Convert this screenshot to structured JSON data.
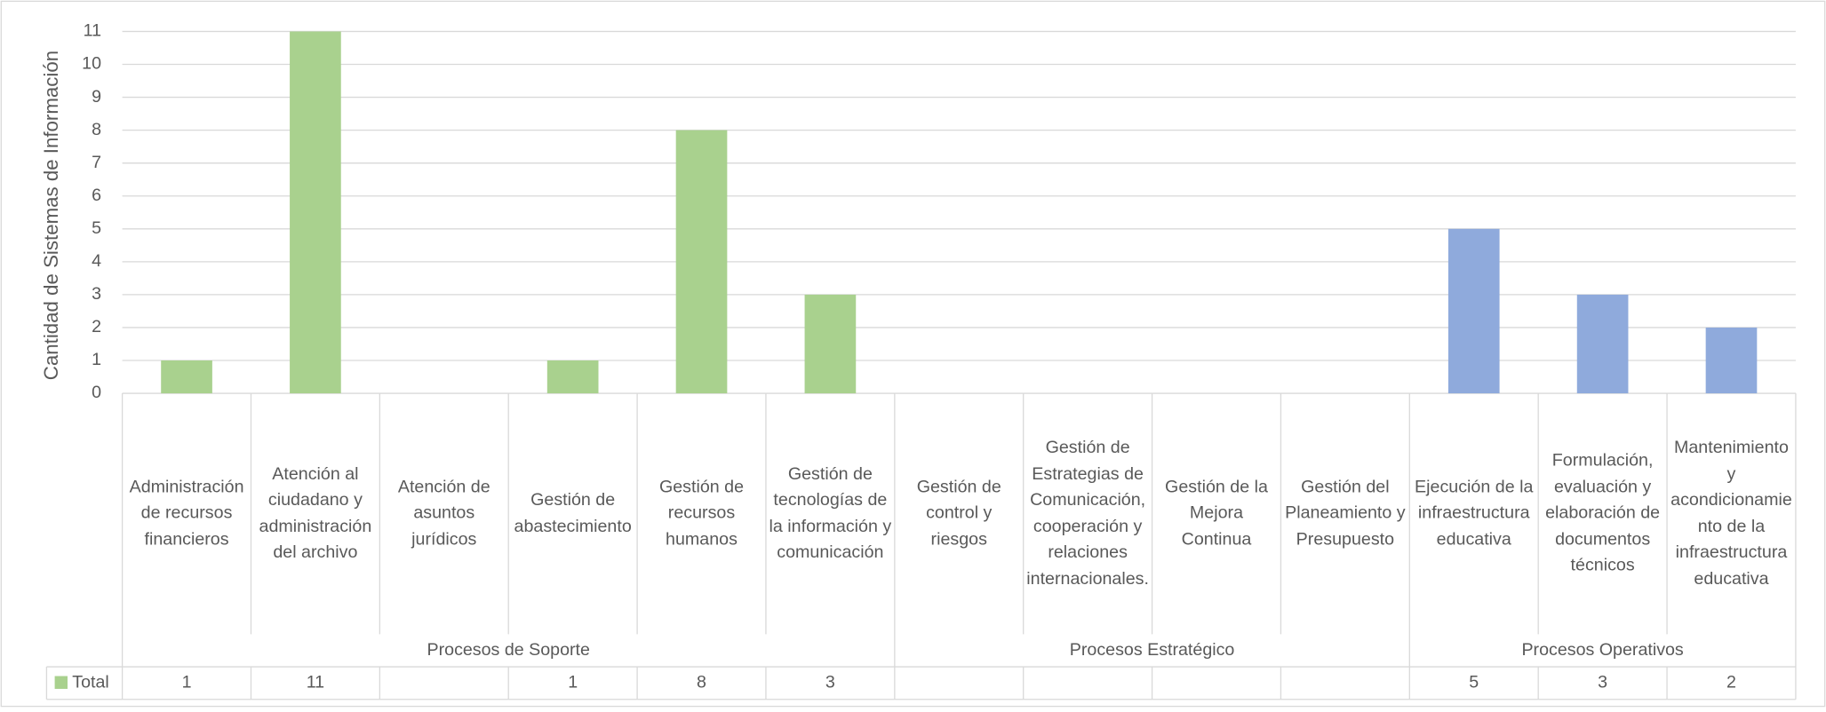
{
  "chart_data": {
    "type": "bar",
    "y_axis_label": "Cantidad de Sistemas de Información",
    "groups": [
      {
        "name": "Procesos de Soporte",
        "color": "#a9d18e",
        "categories": [
          "Administración de recursos financieros",
          "Atención al ciudadano y administración del archivo",
          "Atención de asuntos jurídicos",
          "Gestión de abastecimiento",
          "Gestión de recursos humanos",
          "Gestión de tecnologías de la información y comunicación"
        ]
      },
      {
        "name": "Procesos Estratégico",
        "color": "#a9d18e",
        "categories": [
          "Gestión de control y riesgos",
          "Gestión de Estrategias de Comunicación, cooperación y relaciones internacionales.",
          "Gestión de la Mejora Continua",
          "Gestión del Planeamiento y Presupuesto"
        ]
      },
      {
        "name": "Procesos Operativos",
        "color": "#8faadc",
        "categories": [
          "Ejecución de la infraestructura educativa",
          "Formulación, evaluación y elaboración de documentos técnicos",
          "Mantenimiento y acondicionamiento de la infraestructura educativa"
        ]
      }
    ],
    "series": [
      {
        "name": "Total",
        "color": "#a9d18e",
        "values": [
          1,
          11,
          null,
          1,
          8,
          3,
          null,
          null,
          null,
          null,
          5,
          3,
          2
        ]
      }
    ],
    "ylim": [
      0,
      11
    ],
    "yticks": [
      0,
      1,
      2,
      3,
      4,
      5,
      6,
      7,
      8,
      9,
      10,
      11
    ],
    "grid": true
  }
}
